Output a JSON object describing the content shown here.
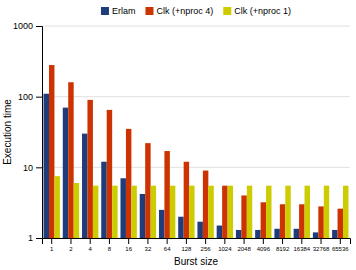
{
  "chart_data": {
    "type": "bar",
    "xlabel": "Burst size",
    "ylabel": "Execution time",
    "categories": [
      1,
      2,
      4,
      8,
      16,
      32,
      64,
      128,
      256,
      1024,
      2048,
      4096,
      8192,
      16384,
      32768,
      65536
    ],
    "series": [
      {
        "name": "Erlam",
        "color": "#1f3d7a",
        "values": [
          110,
          70,
          30,
          12,
          7.0,
          4.2,
          2.5,
          2.0,
          1.7,
          1.5,
          1.3,
          1.3,
          1.35,
          1.35,
          1.2,
          1.3
        ]
      },
      {
        "name": "Clk (+nproc 4)",
        "color": "#cc3300",
        "values": [
          280,
          160,
          90,
          65,
          35,
          22,
          17,
          12,
          9.0,
          5.5,
          4.0,
          3.2,
          3.0,
          3.0,
          2.8,
          2.6
        ]
      },
      {
        "name": "Clk (+nproc 1)",
        "color": "#cccc00",
        "values": [
          7.5,
          6.0,
          5.5,
          5.5,
          5.5,
          5.5,
          5.5,
          5.5,
          5.5,
          5.5,
          5.5,
          5.5,
          5.5,
          5.5,
          5.5,
          5.5
        ]
      }
    ],
    "log": "y",
    "ylim": [
      1,
      1000
    ],
    "yticks": [
      1,
      10,
      100,
      1000
    ],
    "grid": true,
    "legend": "top"
  }
}
